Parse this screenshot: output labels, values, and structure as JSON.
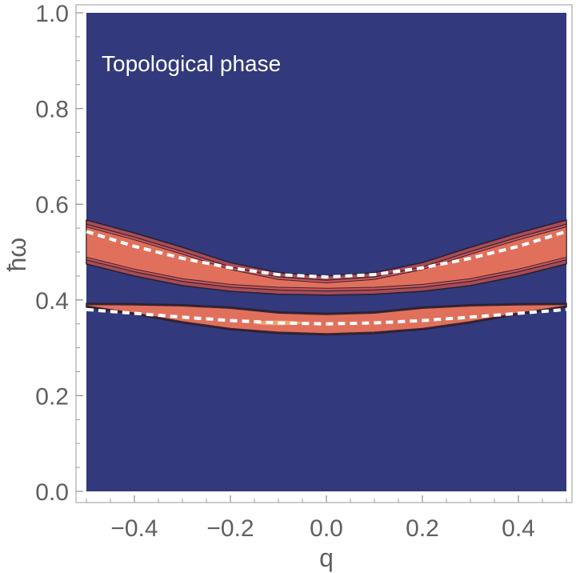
{
  "chart_data": {
    "type": "heatmap",
    "title": "",
    "xlabel": "q",
    "ylabel": "ħω",
    "xlim": [
      -0.5,
      0.5
    ],
    "ylim": [
      0.0,
      1.0
    ],
    "x_ticks": [
      -0.4,
      -0.2,
      0.0,
      0.2,
      0.4
    ],
    "x_tick_labels": [
      "−0.4",
      "−0.2",
      "0.0",
      "0.2",
      "0.4"
    ],
    "y_ticks": [
      0.0,
      0.2,
      0.4,
      0.6,
      0.8,
      1.0
    ],
    "y_tick_labels": [
      "0.0",
      "0.2",
      "0.4",
      "0.6",
      "0.8",
      "1.0"
    ],
    "annotation": "Topological phase",
    "grid": false,
    "background_color": "#32397c",
    "level_colors": [
      "#32397c",
      "#a84c57",
      "#c9555a",
      "#e0705c",
      "#f2a870"
    ],
    "upper_band": {
      "x": [
        -0.5,
        -0.4,
        -0.3,
        -0.2,
        -0.1,
        0.0,
        0.1,
        0.2,
        0.3,
        0.4,
        0.5
      ],
      "y_top": [
        0.567,
        0.54,
        0.51,
        0.478,
        0.457,
        0.45,
        0.457,
        0.478,
        0.51,
        0.54,
        0.567
      ],
      "y_bottom": [
        0.475,
        0.45,
        0.43,
        0.418,
        0.412,
        0.41,
        0.412,
        0.418,
        0.43,
        0.45,
        0.475
      ],
      "dispersion": [
        0.543,
        0.512,
        0.487,
        0.467,
        0.453,
        0.448,
        0.453,
        0.467,
        0.487,
        0.512,
        0.543
      ]
    },
    "lower_band": {
      "x": [
        -0.5,
        -0.4,
        -0.3,
        -0.2,
        -0.1,
        0.0,
        0.1,
        0.2,
        0.3,
        0.4,
        0.5
      ],
      "y_top": [
        0.393,
        0.392,
        0.39,
        0.385,
        0.375,
        0.372,
        0.375,
        0.385,
        0.39,
        0.392,
        0.393
      ],
      "y_bottom": [
        0.385,
        0.37,
        0.352,
        0.338,
        0.33,
        0.327,
        0.33,
        0.338,
        0.352,
        0.37,
        0.385
      ],
      "dispersion": [
        0.38,
        0.372,
        0.364,
        0.357,
        0.352,
        0.35,
        0.352,
        0.357,
        0.364,
        0.372,
        0.38
      ]
    },
    "dispersion_style": "white dashed"
  }
}
